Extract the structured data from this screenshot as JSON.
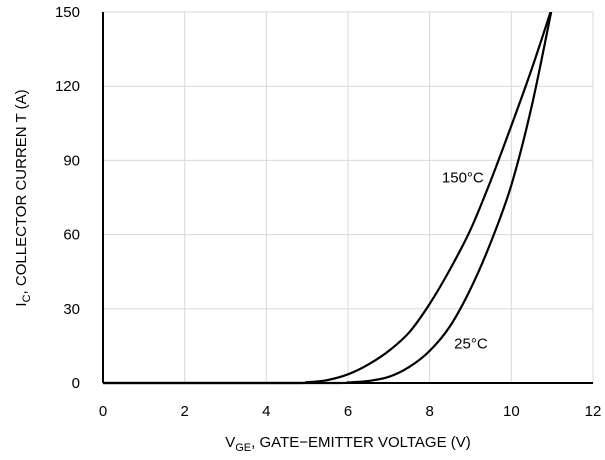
{
  "chart_data": {
    "type": "line",
    "title": "",
    "xlabel": {
      "prefix": "V",
      "sub": "GE",
      "rest": ", GATE−EMITTER VOLTAGE (V)"
    },
    "ylabel": {
      "prefix": "I",
      "sub": "C",
      "rest": ", COLLECTOR CURREN T (A)"
    },
    "xlim": [
      0,
      12
    ],
    "ylim": [
      0,
      150
    ],
    "xticks": [
      0,
      2,
      4,
      6,
      8,
      10,
      12
    ],
    "yticks": [
      0,
      30,
      60,
      90,
      120,
      150
    ],
    "grid": true,
    "series": [
      {
        "name": "150°C",
        "x": [
          0,
          4.5,
          5.0,
          5.5,
          6.0,
          6.5,
          7.0,
          7.5,
          8.0,
          8.5,
          9.0,
          9.5,
          10.0,
          10.5,
          11.0
        ],
        "y": [
          0,
          0,
          0.3,
          1.2,
          3.5,
          7.5,
          13,
          20.5,
          32,
          46,
          62,
          82,
          104,
          127,
          152
        ]
      },
      {
        "name": "25°C",
        "x": [
          0,
          5.5,
          6.0,
          6.5,
          7.0,
          7.5,
          8.0,
          8.5,
          9.0,
          9.5,
          10.0,
          10.5,
          11.0
        ],
        "y": [
          0,
          0,
          0.2,
          0.8,
          2.5,
          6.5,
          13,
          23,
          38,
          57,
          80,
          112,
          152
        ]
      }
    ],
    "annotations": [
      {
        "text": "150°C",
        "x": 8.3,
        "y": 81
      },
      {
        "text": "25°C",
        "x": 8.6,
        "y": 14
      }
    ]
  }
}
